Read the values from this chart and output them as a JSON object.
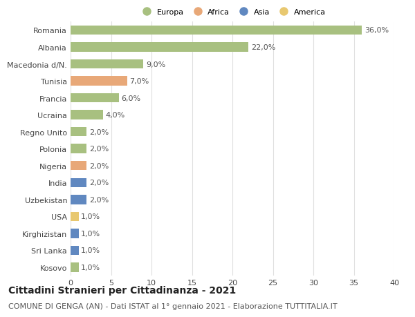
{
  "categories": [
    "Romania",
    "Albania",
    "Macedonia d/N.",
    "Tunisia",
    "Francia",
    "Ucraina",
    "Regno Unito",
    "Polonia",
    "Nigeria",
    "India",
    "Uzbekistan",
    "USA",
    "Kirghizistan",
    "Sri Lanka",
    "Kosovo"
  ],
  "values": [
    36.0,
    22.0,
    9.0,
    7.0,
    6.0,
    4.0,
    2.0,
    2.0,
    2.0,
    2.0,
    2.0,
    1.0,
    1.0,
    1.0,
    1.0
  ],
  "continents": [
    "Europa",
    "Europa",
    "Europa",
    "Africa",
    "Europa",
    "Europa",
    "Europa",
    "Europa",
    "Africa",
    "Asia",
    "Asia",
    "America",
    "Asia",
    "Asia",
    "Europa"
  ],
  "continent_colors": {
    "Europa": "#a8c080",
    "Africa": "#e8a878",
    "Asia": "#6088c0",
    "America": "#e8c870"
  },
  "legend_order": [
    "Europa",
    "Africa",
    "Asia",
    "America"
  ],
  "xlim": [
    0,
    40
  ],
  "xticks": [
    0,
    5,
    10,
    15,
    20,
    25,
    30,
    35,
    40
  ],
  "title": "Cittadini Stranieri per Cittadinanza - 2021",
  "subtitle": "COMUNE DI GENGA (AN) - Dati ISTAT al 1° gennaio 2021 - Elaborazione TUTTITALIA.IT",
  "title_fontsize": 10,
  "subtitle_fontsize": 8,
  "label_fontsize": 8,
  "tick_fontsize": 8,
  "grid_color": "#e0e0e0",
  "background_color": "#ffffff",
  "bar_height": 0.55
}
